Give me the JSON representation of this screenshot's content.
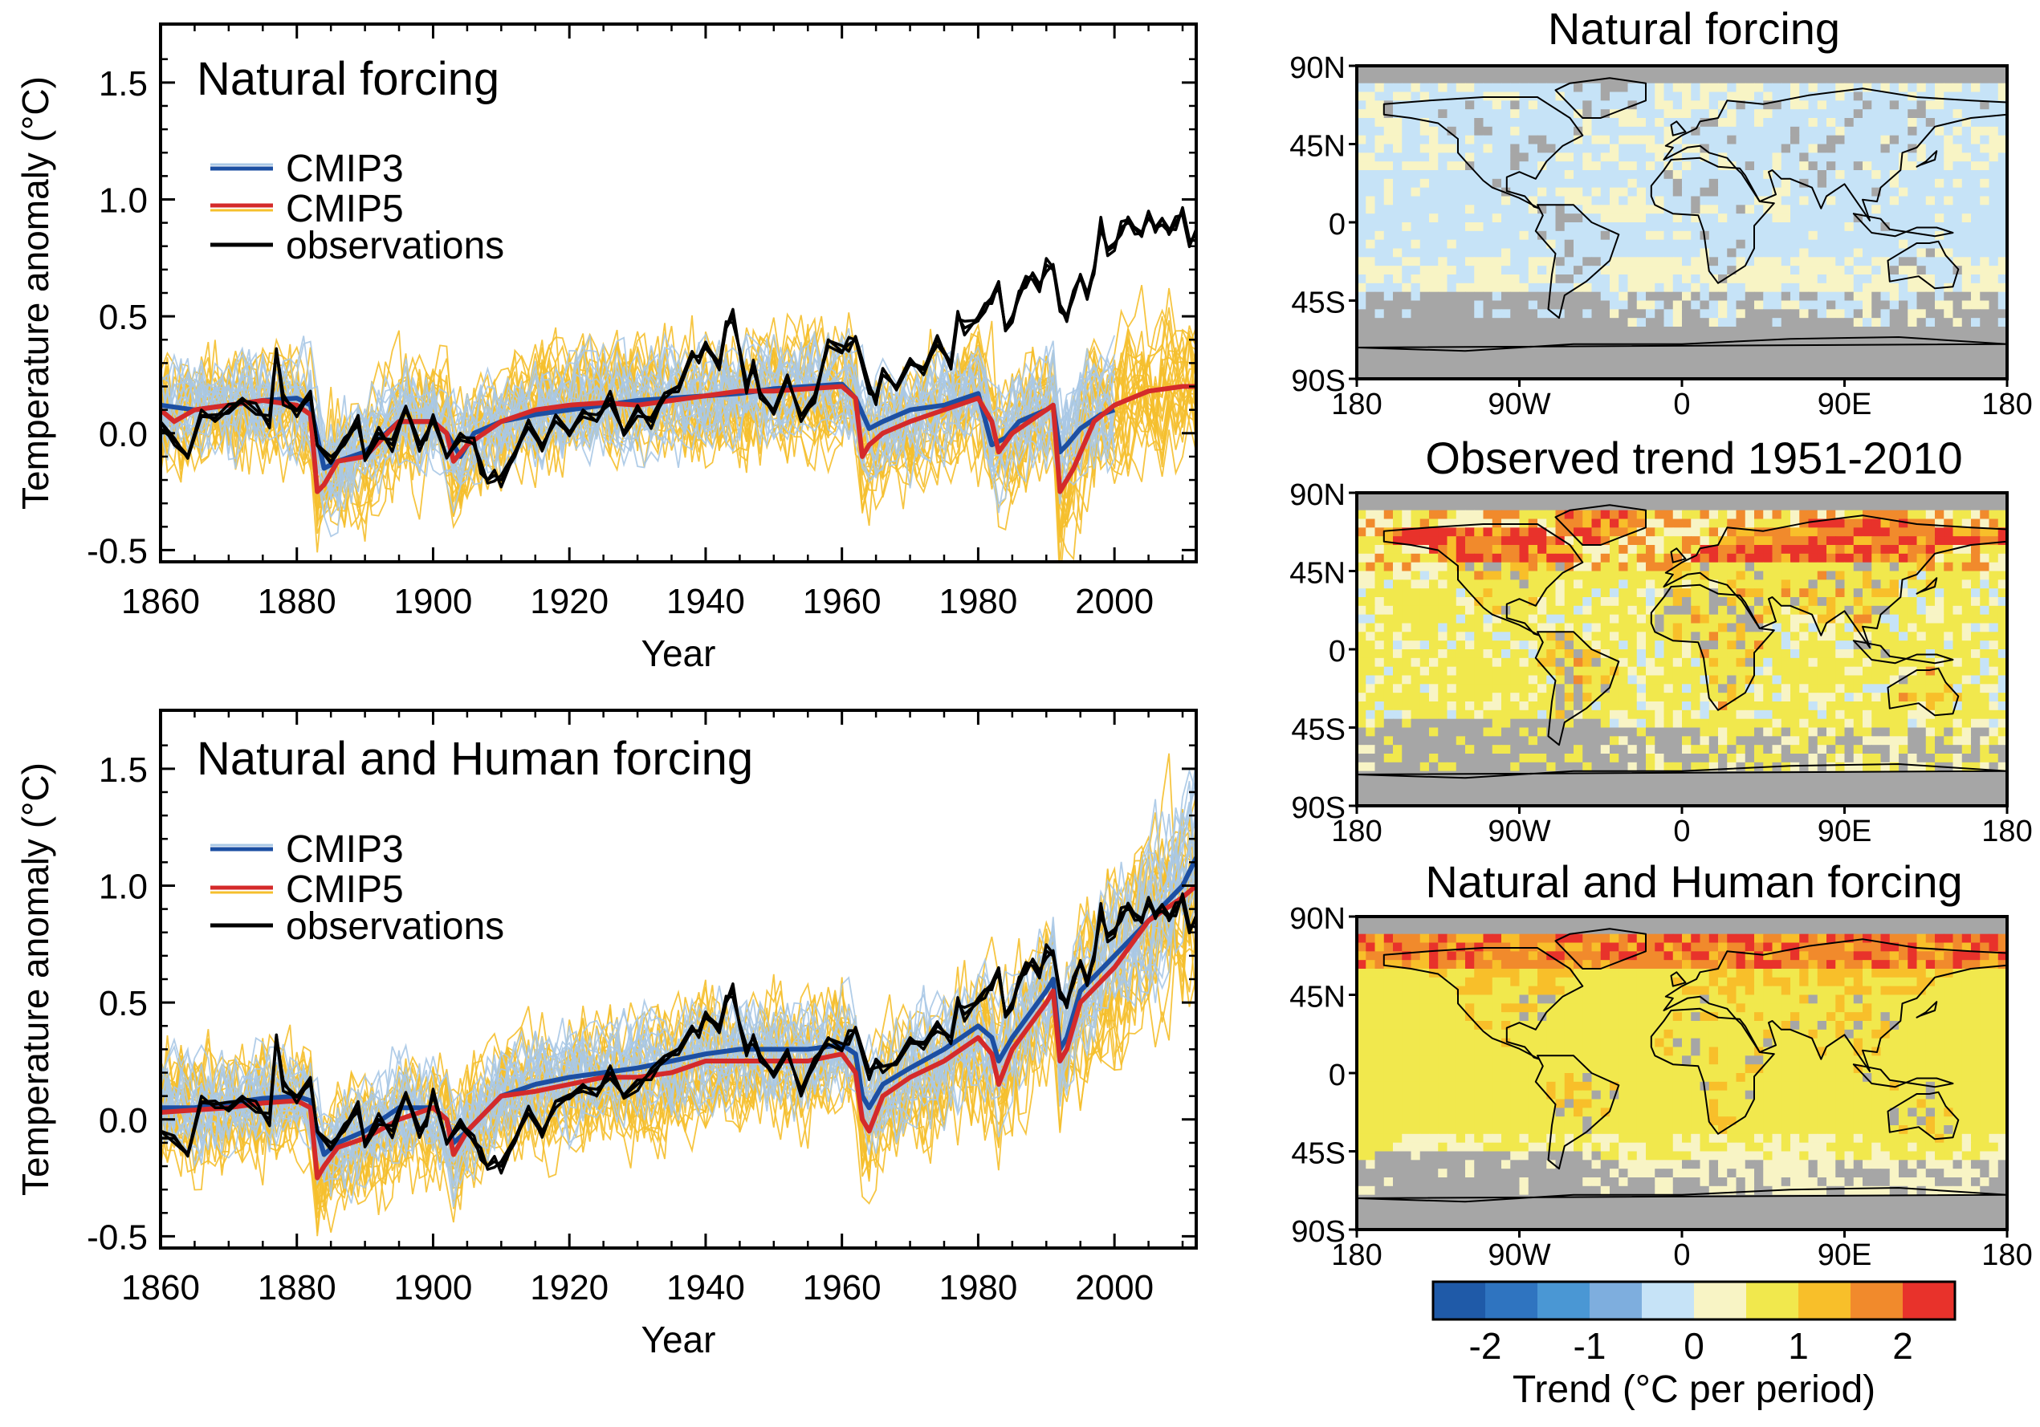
{
  "colors": {
    "cmip3_mean": "#1c4fa3",
    "cmip3_members": "#a9c8e6",
    "cmip5_mean": "#d42a2a",
    "cmip5_members": "#f5bf2c",
    "observations": "#000000",
    "no_data": "#a6a6a6",
    "border": "#000000"
  },
  "chart_data": [
    {
      "type": "line",
      "title": "Natural forcing",
      "xlabel": "Year",
      "ylabel": "Temperature anomaly (°C)",
      "xlim": [
        1860,
        2012
      ],
      "ylim": [
        -0.55,
        1.75
      ],
      "x_ticks": [
        1860,
        1880,
        1900,
        1920,
        1940,
        1960,
        1980,
        2000
      ],
      "x_tick_labels": [
        "1860",
        "1880",
        "1900",
        "1920",
        "1940",
        "1960",
        "1980",
        "2000"
      ],
      "y_ticks": [
        -0.5,
        0.0,
        0.5,
        1.0,
        1.5
      ],
      "y_tick_labels": [
        "-0.5",
        "0.0",
        "0.5",
        "1.0",
        "1.5"
      ],
      "legend": [
        "CMIP3",
        "CMIP5",
        "observations"
      ],
      "legend_position": "upper-left",
      "series": [
        {
          "name": "CMIP3",
          "x": [
            1860,
            1865,
            1870,
            1875,
            1880,
            1882,
            1884,
            1886,
            1890,
            1895,
            1900,
            1902,
            1904,
            1906,
            1910,
            1915,
            1920,
            1925,
            1930,
            1935,
            1940,
            1945,
            1950,
            1955,
            1960,
            1962,
            1964,
            1966,
            1970,
            1975,
            1978,
            1980,
            1982,
            1984,
            1986,
            1990,
            1991,
            1992,
            1993,
            1995,
            1998,
            2000
          ],
          "y": [
            0.12,
            0.1,
            0.12,
            0.14,
            0.15,
            0.12,
            -0.15,
            -0.12,
            -0.08,
            0.05,
            0.05,
            0.0,
            -0.1,
            0.0,
            0.05,
            0.08,
            0.1,
            0.12,
            0.14,
            0.15,
            0.16,
            0.17,
            0.19,
            0.2,
            0.21,
            0.15,
            0.02,
            0.05,
            0.1,
            0.12,
            0.15,
            0.17,
            -0.05,
            -0.02,
            0.05,
            0.1,
            0.12,
            -0.08,
            -0.05,
            0.02,
            0.08,
            0.1
          ]
        },
        {
          "name": "CMIP5",
          "x": [
            1860,
            1862,
            1865,
            1870,
            1875,
            1880,
            1882,
            1883,
            1884,
            1886,
            1890,
            1895,
            1900,
            1902,
            1903,
            1905,
            1910,
            1915,
            1920,
            1925,
            1930,
            1935,
            1940,
            1945,
            1950,
            1955,
            1960,
            1962,
            1963,
            1964,
            1966,
            1970,
            1975,
            1980,
            1982,
            1983,
            1985,
            1990,
            1991,
            1992,
            1994,
            1997,
            2000,
            2005,
            2010,
            2012
          ],
          "y": [
            0.1,
            0.05,
            0.1,
            0.12,
            0.14,
            0.12,
            0.08,
            -0.25,
            -0.22,
            -0.12,
            -0.1,
            0.05,
            0.05,
            0.0,
            -0.12,
            -0.05,
            0.05,
            0.1,
            0.12,
            0.13,
            0.12,
            0.14,
            0.16,
            0.18,
            0.18,
            0.19,
            0.2,
            0.15,
            -0.1,
            -0.05,
            0.0,
            0.05,
            0.1,
            0.15,
            0.05,
            -0.08,
            0.0,
            0.1,
            0.12,
            -0.25,
            -0.15,
            0.05,
            0.12,
            0.18,
            0.2,
            0.2
          ]
        },
        {
          "name": "observations",
          "x": [
            1860,
            1862,
            1864,
            1866,
            1868,
            1870,
            1872,
            1874,
            1876,
            1877,
            1878,
            1880,
            1882,
            1883,
            1885,
            1887,
            1889,
            1890,
            1892,
            1894,
            1896,
            1898,
            1899,
            1900,
            1902,
            1904,
            1906,
            1907,
            1908,
            1909,
            1910,
            1912,
            1914,
            1916,
            1918,
            1920,
            1922,
            1924,
            1926,
            1928,
            1930,
            1932,
            1934,
            1936,
            1938,
            1939,
            1940,
            1942,
            1943,
            1944,
            1945,
            1946,
            1947,
            1948,
            1950,
            1952,
            1954,
            1956,
            1958,
            1960,
            1961,
            1962,
            1964,
            1965,
            1966,
            1968,
            1970,
            1972,
            1974,
            1976,
            1977,
            1978,
            1980,
            1981,
            1982,
            1983,
            1984,
            1985,
            1986,
            1987,
            1988,
            1989,
            1990,
            1991,
            1992,
            1993,
            1994,
            1995,
            1996,
            1997,
            1998,
            1999,
            2000,
            2001,
            2002,
            2003,
            2004,
            2005,
            2006,
            2007,
            2008,
            2009,
            2010,
            2011,
            2012
          ],
          "y": [
            0.05,
            -0.05,
            -0.1,
            0.1,
            0.05,
            0.1,
            0.15,
            0.1,
            0.05,
            0.35,
            0.15,
            0.1,
            0.15,
            -0.05,
            -0.1,
            -0.05,
            0.05,
            -0.1,
            0.0,
            -0.05,
            0.1,
            -0.05,
            0.0,
            0.05,
            -0.1,
            0.0,
            -0.05,
            -0.15,
            -0.2,
            -0.18,
            -0.2,
            -0.1,
            0.05,
            -0.05,
            0.05,
            0.0,
            0.1,
            0.05,
            0.15,
            0.0,
            0.1,
            0.05,
            0.15,
            0.2,
            0.35,
            0.3,
            0.38,
            0.3,
            0.45,
            0.5,
            0.35,
            0.2,
            0.3,
            0.15,
            0.1,
            0.25,
            0.05,
            0.15,
            0.4,
            0.35,
            0.38,
            0.4,
            0.2,
            0.15,
            0.25,
            0.2,
            0.32,
            0.25,
            0.4,
            0.3,
            0.5,
            0.45,
            0.48,
            0.55,
            0.58,
            0.62,
            0.45,
            0.5,
            0.58,
            0.65,
            0.68,
            0.62,
            0.72,
            0.7,
            0.55,
            0.5,
            0.58,
            0.68,
            0.6,
            0.68,
            0.9,
            0.78,
            0.8,
            0.88,
            0.9,
            0.88,
            0.86,
            0.92,
            0.88,
            0.92,
            0.85,
            0.9,
            0.95,
            0.82,
            0.85
          ]
        }
      ]
    },
    {
      "type": "line",
      "title": "Natural and Human forcing",
      "xlabel": "Year",
      "ylabel": "Temperature anomaly (°C)",
      "xlim": [
        1860,
        2012
      ],
      "ylim": [
        -0.55,
        1.75
      ],
      "x_ticks": [
        1860,
        1880,
        1900,
        1920,
        1940,
        1960,
        1980,
        2000
      ],
      "x_tick_labels": [
        "1860",
        "1880",
        "1900",
        "1920",
        "1940",
        "1960",
        "1980",
        "2000"
      ],
      "y_ticks": [
        -0.5,
        0.0,
        0.5,
        1.0,
        1.5
      ],
      "y_tick_labels": [
        "-0.5",
        "0.0",
        "0.5",
        "1.0",
        "1.5"
      ],
      "legend": [
        "CMIP3",
        "CMIP5",
        "observations"
      ],
      "legend_position": "upper-left",
      "series": [
        {
          "name": "CMIP3",
          "x": [
            1860,
            1865,
            1870,
            1875,
            1880,
            1882,
            1883,
            1884,
            1886,
            1890,
            1895,
            1900,
            1902,
            1903,
            1905,
            1910,
            1915,
            1920,
            1925,
            1930,
            1935,
            1940,
            1945,
            1950,
            1955,
            1960,
            1962,
            1963,
            1964,
            1966,
            1970,
            1975,
            1980,
            1982,
            1983,
            1985,
            1990,
            1991,
            1992,
            1993,
            1995,
            2000,
            2005,
            2010,
            2012
          ],
          "y": [
            0.05,
            0.05,
            0.07,
            0.09,
            0.1,
            0.08,
            -0.05,
            -0.15,
            -0.1,
            -0.05,
            0.05,
            0.05,
            0.0,
            -0.1,
            -0.05,
            0.1,
            0.15,
            0.18,
            0.2,
            0.22,
            0.25,
            0.28,
            0.3,
            0.3,
            0.3,
            0.32,
            0.28,
            0.1,
            0.05,
            0.15,
            0.22,
            0.3,
            0.4,
            0.35,
            0.25,
            0.35,
            0.55,
            0.6,
            0.3,
            0.35,
            0.55,
            0.7,
            0.85,
            1.0,
            1.12
          ]
        },
        {
          "name": "CMIP5",
          "x": [
            1860,
            1865,
            1870,
            1875,
            1880,
            1882,
            1883,
            1884,
            1886,
            1890,
            1895,
            1900,
            1902,
            1903,
            1905,
            1910,
            1915,
            1920,
            1925,
            1930,
            1935,
            1940,
            1945,
            1950,
            1955,
            1960,
            1962,
            1963,
            1964,
            1966,
            1970,
            1975,
            1980,
            1982,
            1983,
            1985,
            1990,
            1991,
            1992,
            1993,
            1995,
            2000,
            2005,
            2010,
            2012
          ],
          "y": [
            0.03,
            0.04,
            0.05,
            0.07,
            0.08,
            0.05,
            -0.25,
            -0.2,
            -0.12,
            -0.08,
            0.0,
            0.05,
            0.0,
            -0.15,
            -0.05,
            0.1,
            0.12,
            0.15,
            0.18,
            0.18,
            0.2,
            0.25,
            0.25,
            0.25,
            0.25,
            0.28,
            0.2,
            0.0,
            -0.05,
            0.1,
            0.18,
            0.25,
            0.35,
            0.28,
            0.15,
            0.3,
            0.5,
            0.55,
            0.25,
            0.3,
            0.5,
            0.65,
            0.85,
            0.95,
            1.0
          ]
        },
        {
          "name": "observations",
          "x": [
            1860,
            1862,
            1864,
            1866,
            1868,
            1870,
            1872,
            1874,
            1876,
            1877,
            1878,
            1880,
            1882,
            1883,
            1885,
            1887,
            1889,
            1890,
            1892,
            1894,
            1896,
            1898,
            1899,
            1900,
            1902,
            1904,
            1906,
            1907,
            1908,
            1909,
            1910,
            1912,
            1914,
            1916,
            1918,
            1920,
            1922,
            1924,
            1926,
            1928,
            1930,
            1932,
            1934,
            1936,
            1938,
            1939,
            1940,
            1942,
            1943,
            1944,
            1945,
            1946,
            1947,
            1948,
            1950,
            1952,
            1954,
            1956,
            1958,
            1960,
            1961,
            1962,
            1964,
            1965,
            1966,
            1968,
            1970,
            1972,
            1974,
            1976,
            1977,
            1978,
            1980,
            1981,
            1982,
            1983,
            1984,
            1985,
            1986,
            1987,
            1988,
            1989,
            1990,
            1991,
            1992,
            1993,
            1994,
            1995,
            1996,
            1997,
            1998,
            1999,
            2000,
            2001,
            2002,
            2003,
            2004,
            2005,
            2006,
            2007,
            2008,
            2009,
            2010,
            2011,
            2012
          ],
          "y": [
            -0.05,
            -0.1,
            -0.15,
            0.1,
            0.05,
            0.05,
            0.1,
            0.05,
            0.0,
            0.35,
            0.15,
            0.1,
            0.15,
            -0.05,
            -0.1,
            -0.05,
            0.05,
            -0.1,
            0.0,
            -0.05,
            0.1,
            -0.05,
            0.0,
            0.1,
            -0.1,
            0.0,
            -0.1,
            -0.15,
            -0.2,
            -0.18,
            -0.2,
            -0.1,
            0.05,
            -0.05,
            0.05,
            0.1,
            0.15,
            0.1,
            0.2,
            0.1,
            0.15,
            0.2,
            0.25,
            0.3,
            0.4,
            0.35,
            0.45,
            0.4,
            0.5,
            0.55,
            0.4,
            0.3,
            0.35,
            0.25,
            0.2,
            0.3,
            0.1,
            0.25,
            0.35,
            0.3,
            0.35,
            0.38,
            0.2,
            0.25,
            0.2,
            0.25,
            0.35,
            0.3,
            0.4,
            0.35,
            0.5,
            0.45,
            0.5,
            0.55,
            0.58,
            0.62,
            0.45,
            0.5,
            0.58,
            0.65,
            0.68,
            0.62,
            0.72,
            0.7,
            0.55,
            0.5,
            0.58,
            0.68,
            0.6,
            0.68,
            0.9,
            0.78,
            0.8,
            0.88,
            0.9,
            0.88,
            0.86,
            0.92,
            0.88,
            0.92,
            0.85,
            0.9,
            0.95,
            0.82,
            0.85
          ]
        }
      ]
    },
    {
      "type": "heatmap",
      "title": "Natural forcing",
      "lat_labels": [
        "90N",
        "45N",
        "0",
        "45S",
        "90S"
      ],
      "lon_labels": [
        "180",
        "90W",
        "0",
        "90E",
        "180"
      ],
      "trend_summary": {
        "dominant_category": "0 to 0.5 (light blue)",
        "secondary": "near zero (pale yellow)",
        "no_data": "grey over Arctic, Antarctic and Southern Ocean"
      }
    },
    {
      "type": "heatmap",
      "title": "Observed trend 1951-2010",
      "lat_labels": [
        "90N",
        "45N",
        "0",
        "45S",
        "90S"
      ],
      "lon_labels": [
        "180",
        "90W",
        "0",
        "90E",
        "180"
      ],
      "trend_summary": {
        "dominant_category": "0.5 to 1 (yellow)",
        "secondary": "1.5 to 2.5 (orange/red) over northern high latitudes",
        "no_data": "grey over Arctic, Antarctic, Southern Ocean"
      }
    },
    {
      "type": "heatmap",
      "title": "Natural and Human forcing",
      "lat_labels": [
        "90N",
        "45N",
        "0",
        "45S",
        "90S"
      ],
      "lon_labels": [
        "180",
        "90W",
        "0",
        "90E",
        "180"
      ],
      "trend_summary": {
        "dominant_category": "0.5 to 1 (yellow)",
        "secondary": "1 to 2 (orange) over northern high latitudes",
        "no_data": "grey over Arctic and Antarctic"
      }
    }
  ],
  "colorbar": {
    "label": "Trend (°C per period)",
    "tick_labels": [
      "-2",
      "-1",
      "0",
      "1",
      "2"
    ],
    "tick_values": [
      -2,
      -1,
      0,
      1,
      2
    ],
    "range": [
      -2.5,
      2.5
    ],
    "colors": [
      "#1f5aa8",
      "#2f74c0",
      "#4a97d4",
      "#7eaede",
      "#c6e3f7",
      "#f8f4c5",
      "#f1e84d",
      "#f8bf2a",
      "#f18a2c",
      "#e8322b"
    ]
  }
}
